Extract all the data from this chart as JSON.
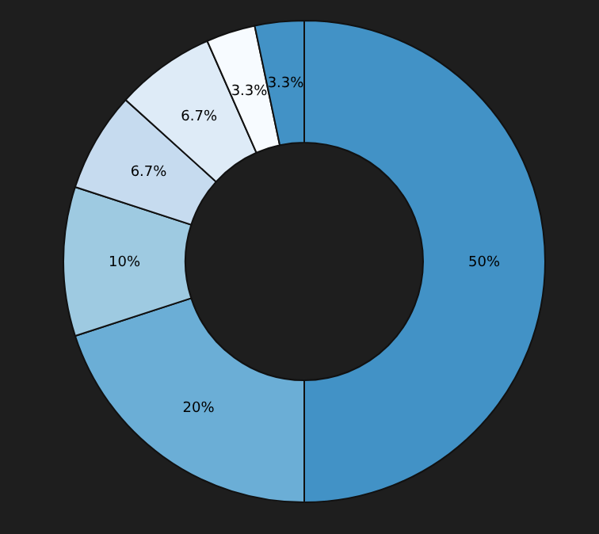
{
  "chart_data": {
    "type": "donut",
    "categories": [
      null,
      null,
      null,
      null,
      null,
      null,
      null
    ],
    "values": [
      50,
      20,
      10,
      6.7,
      6.7,
      3.3,
      3.3
    ],
    "value_labels": [
      "50%",
      "20%",
      "10%",
      "6.7%",
      "6.7%",
      "3.3%",
      "3.3%"
    ],
    "colors": [
      "#4292c6",
      "#6baed6",
      "#9ecae1",
      "#c6dbef",
      "#deebf7",
      "#f7fbff",
      "#4292c6"
    ],
    "legend": false
  }
}
